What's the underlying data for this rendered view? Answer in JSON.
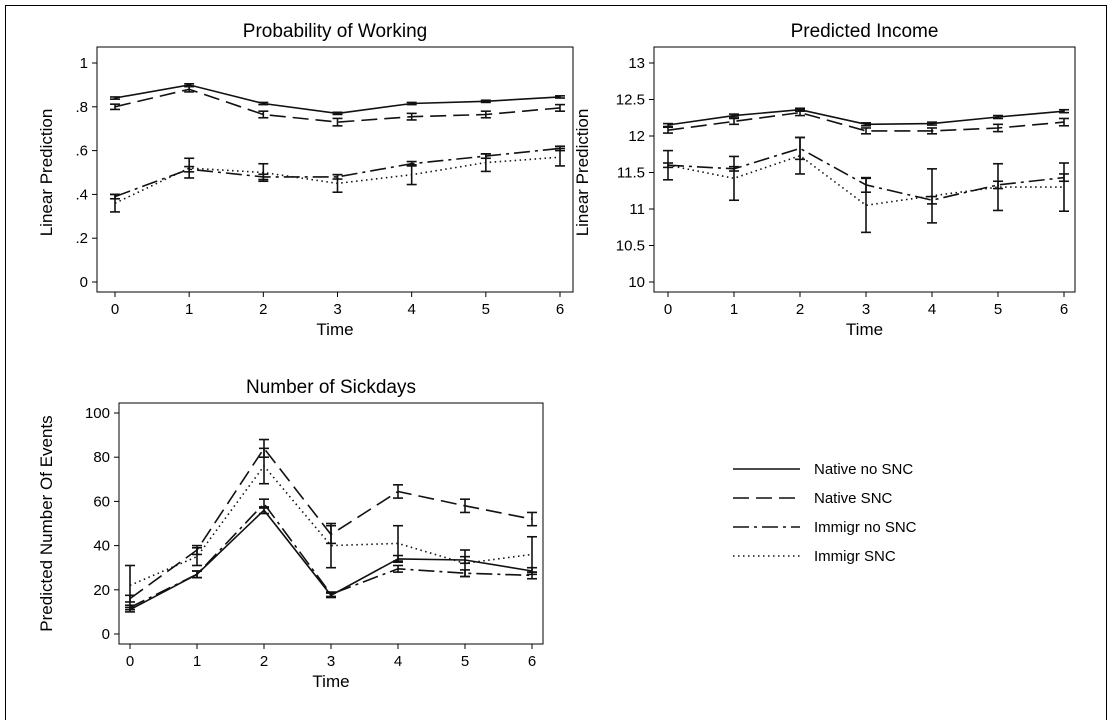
{
  "legend": {
    "entries": [
      {
        "label": "Native no SNC",
        "dash": ""
      },
      {
        "label": "Native SNC",
        "dash": "16,7"
      },
      {
        "label": "Immigr no SNC",
        "dash": "16,5,3,5"
      },
      {
        "label": "Immigr SNC",
        "dash": "1.5,3.5"
      }
    ]
  },
  "chart_data": [
    {
      "type": "line",
      "title": "Probability of Working",
      "xlabel": "Time",
      "ylabel": "Linear Prediction",
      "x": [
        0,
        1,
        2,
        3,
        4,
        5,
        6
      ],
      "xlim": [
        0,
        6
      ],
      "ylim": [
        0,
        1
      ],
      "yticks": [
        0,
        0.2,
        0.4,
        0.6,
        0.8,
        1
      ],
      "yticklabels": [
        "0",
        ".2",
        ".4",
        ".6",
        ".8",
        "1"
      ],
      "series": [
        {
          "name": "Native no SNC",
          "values": [
            0.84,
            0.9,
            0.815,
            0.77,
            0.815,
            0.825,
            0.845
          ],
          "err": [
            0.005,
            0.005,
            0.005,
            0.005,
            0.005,
            0.005,
            0.005
          ]
        },
        {
          "name": "Native SNC",
          "values": [
            0.8,
            0.88,
            0.765,
            0.73,
            0.755,
            0.765,
            0.795
          ],
          "err": [
            0.012,
            0.012,
            0.015,
            0.017,
            0.015,
            0.015,
            0.015
          ]
        },
        {
          "name": "Immigr no SNC",
          "values": [
            0.39,
            0.515,
            0.48,
            0.48,
            0.54,
            0.575,
            0.61
          ],
          "err": [
            0.01,
            0.012,
            0.012,
            0.01,
            0.01,
            0.01,
            0.01
          ]
        },
        {
          "name": "Immigr SNC",
          "values": [
            0.36,
            0.52,
            0.5,
            0.45,
            0.49,
            0.545,
            0.57
          ],
          "err": [
            0.04,
            0.045,
            0.04,
            0.04,
            0.045,
            0.04,
            0.04
          ]
        }
      ]
    },
    {
      "type": "line",
      "title": "Predicted Income",
      "xlabel": "Time",
      "ylabel": "Linear Prediction",
      "x": [
        0,
        1,
        2,
        3,
        4,
        5,
        6
      ],
      "xlim": [
        0,
        6
      ],
      "ylim": [
        10,
        13
      ],
      "yticks": [
        10,
        10.5,
        11,
        11.5,
        12,
        12.5,
        13
      ],
      "yticklabels": [
        "10",
        "10.5",
        "11",
        "11.5",
        "12",
        "12.5",
        "13"
      ],
      "series": [
        {
          "name": "Native no SNC",
          "values": [
            12.15,
            12.28,
            12.36,
            12.16,
            12.17,
            12.26,
            12.34
          ],
          "err": [
            0.02,
            0.02,
            0.02,
            0.02,
            0.02,
            0.02,
            0.02
          ]
        },
        {
          "name": "Native SNC",
          "values": [
            12.08,
            12.2,
            12.32,
            12.07,
            12.07,
            12.11,
            12.19
          ],
          "err": [
            0.04,
            0.04,
            0.04,
            0.04,
            0.04,
            0.05,
            0.05
          ]
        },
        {
          "name": "Immigr no SNC",
          "values": [
            11.6,
            11.55,
            11.83,
            11.33,
            11.12,
            11.33,
            11.43
          ],
          "err": [
            0.03,
            0.03,
            0.15,
            0.1,
            0.05,
            0.05,
            0.05
          ]
        },
        {
          "name": "Immigr SNC",
          "values": [
            11.6,
            11.42,
            11.73,
            11.05,
            11.18,
            11.3,
            11.3
          ],
          "err": [
            0.2,
            0.3,
            0.25,
            0.37,
            0.37,
            0.32,
            0.33
          ]
        }
      ]
    },
    {
      "type": "line",
      "title": "Number of Sickdays",
      "xlabel": "Time",
      "ylabel": "Predicted Number Of Events",
      "x": [
        0,
        1,
        2,
        3,
        4,
        5,
        6
      ],
      "xlim": [
        0,
        6
      ],
      "ylim": [
        0,
        100
      ],
      "yticks": [
        0,
        20,
        40,
        60,
        80,
        100
      ],
      "yticklabels": [
        "0",
        "20",
        "40",
        "60",
        "80",
        "100"
      ],
      "series": [
        {
          "name": "Native no SNC",
          "values": [
            11,
            27,
            56,
            17.5,
            34,
            33.5,
            28.5
          ],
          "err": [
            1,
            1.5,
            1.5,
            1,
            1.5,
            1.5,
            1.5
          ]
        },
        {
          "name": "Native SNC",
          "values": [
            16,
            38,
            84,
            45,
            64.5,
            58,
            52
          ],
          "err": [
            1.5,
            2,
            4,
            4,
            3,
            3,
            3
          ]
        },
        {
          "name": "Immigr no SNC",
          "values": [
            12,
            27,
            59,
            18,
            29.5,
            27.5,
            26.5
          ],
          "err": [
            1,
            1.5,
            2,
            1,
            1.5,
            1.5,
            1.5
          ]
        },
        {
          "name": "Immigr SNC",
          "values": [
            22,
            35,
            76,
            40,
            41,
            32,
            36
          ],
          "err": [
            9,
            4,
            8,
            10,
            8,
            6,
            8
          ]
        }
      ]
    }
  ]
}
